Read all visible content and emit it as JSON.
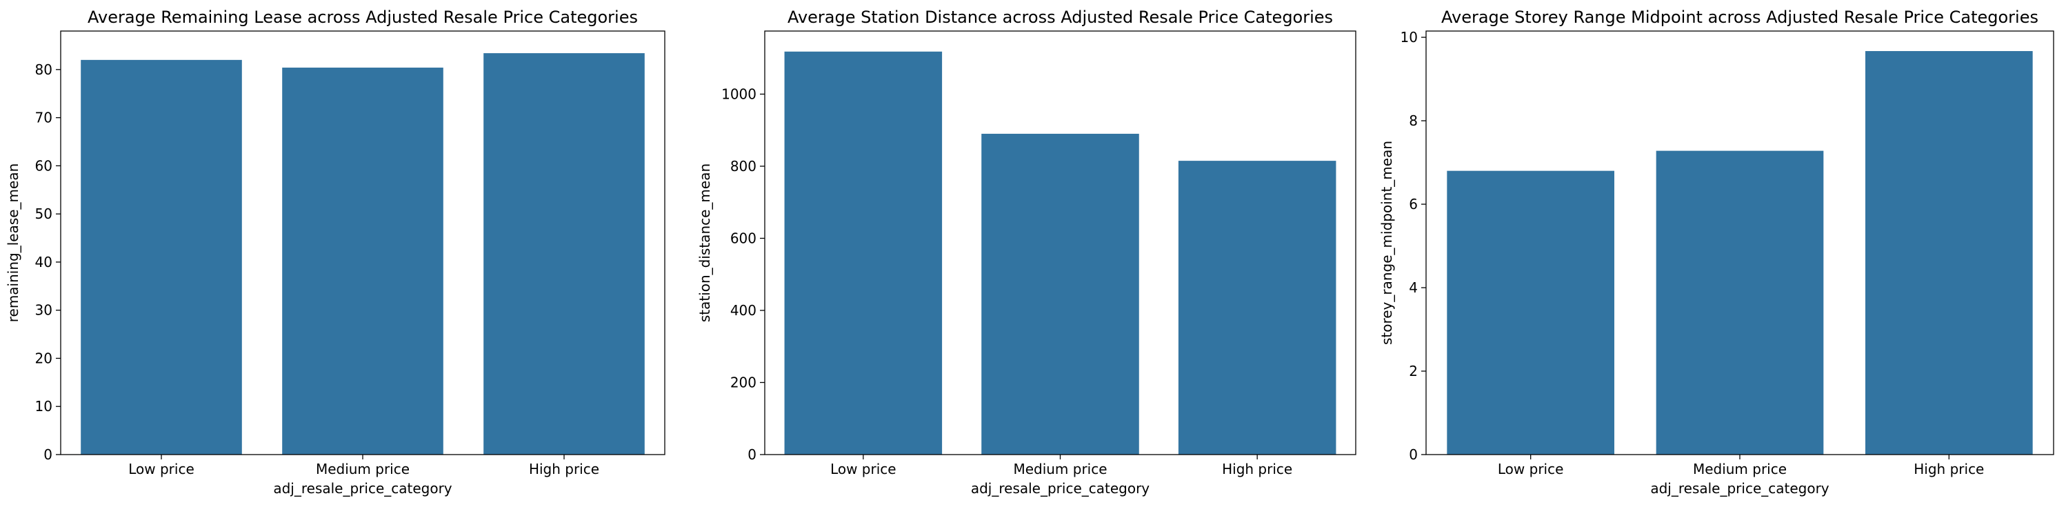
{
  "chart_data": [
    {
      "type": "bar",
      "title": "Average Remaining Lease across Adjusted Resale Price Categories",
      "xlabel": "adj_resale_price_category",
      "ylabel": "remaining_lease_mean",
      "categories": [
        "Low price",
        "Medium price",
        "High price"
      ],
      "values": [
        82.0,
        80.4,
        83.4
      ],
      "ylim": [
        0,
        88
      ],
      "yticks": [
        0,
        10,
        20,
        30,
        40,
        50,
        60,
        70,
        80
      ],
      "bar_color": "#3274a1",
      "grid": false
    },
    {
      "type": "bar",
      "title": "Average Station Distance across Adjusted Resale Price Categories",
      "xlabel": "adj_resale_price_category",
      "ylabel": "station_distance_mean",
      "categories": [
        "Low price",
        "Medium price",
        "High price"
      ],
      "values": [
        1118,
        890,
        815
      ],
      "ylim": [
        0,
        1175
      ],
      "yticks": [
        0,
        200,
        400,
        600,
        800,
        1000
      ],
      "bar_color": "#3274a1",
      "grid": false
    },
    {
      "type": "bar",
      "title": "Average Storey Range Midpoint across Adjusted Resale Price Categories",
      "xlabel": "adj_resale_price_category",
      "ylabel": "storey_range_midpoint_mean",
      "categories": [
        "Low price",
        "Medium price",
        "High price"
      ],
      "values": [
        6.8,
        7.28,
        9.67
      ],
      "ylim": [
        0,
        10.15
      ],
      "yticks": [
        0,
        2,
        4,
        6,
        8,
        10
      ],
      "bar_color": "#3274a1",
      "grid": false
    }
  ]
}
